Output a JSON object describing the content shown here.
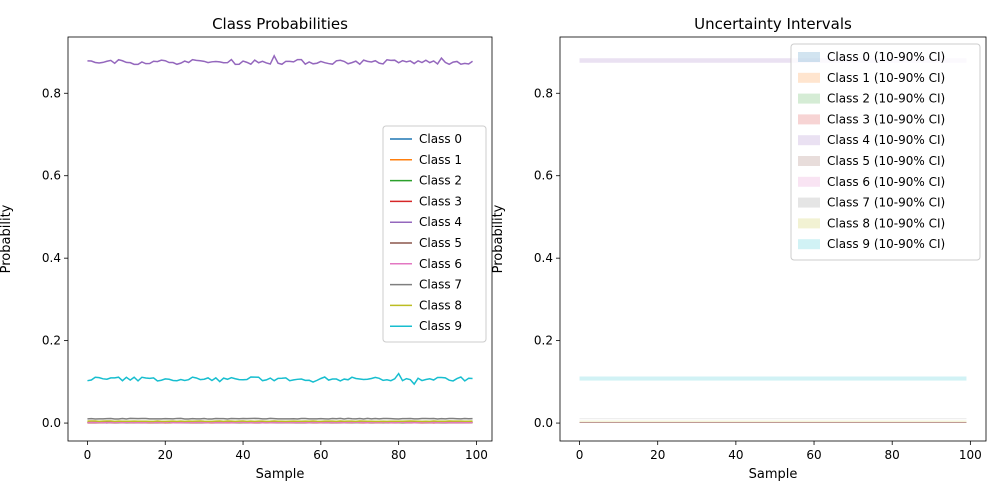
{
  "chart_data": [
    {
      "type": "line",
      "title": "Class Probabilities",
      "xlabel": "Sample",
      "ylabel": "Probability",
      "xlim": [
        -5,
        104
      ],
      "ylim": [
        -0.0435,
        0.9365
      ],
      "xticks": [
        0,
        20,
        40,
        60,
        80,
        100
      ],
      "yticks": [
        0.0,
        0.2,
        0.4,
        0.6,
        0.8
      ],
      "grid": false,
      "legend_position": "center-right",
      "n_samples": 100,
      "series": [
        {
          "name": "Class 0",
          "color": "#1f77b4",
          "mean": 0.0015,
          "noise": 0.0004
        },
        {
          "name": "Class 1",
          "color": "#ff7f0e",
          "mean": 0.0015,
          "noise": 0.0004
        },
        {
          "name": "Class 2",
          "color": "#2ca02c",
          "mean": 0.0015,
          "noise": 0.0004
        },
        {
          "name": "Class 3",
          "color": "#d62728",
          "mean": 0.0015,
          "noise": 0.0004
        },
        {
          "name": "Class 4",
          "color": "#9467bd",
          "mean": 0.876,
          "noise": 0.006
        },
        {
          "name": "Class 5",
          "color": "#8c564b",
          "mean": 0.0015,
          "noise": 0.0004
        },
        {
          "name": "Class 6",
          "color": "#e377c2",
          "mean": 0.0015,
          "noise": 0.0004
        },
        {
          "name": "Class 7",
          "color": "#7f7f7f",
          "mean": 0.0105,
          "noise": 0.0008
        },
        {
          "name": "Class 8",
          "color": "#bcbd22",
          "mean": 0.0045,
          "noise": 0.0005
        },
        {
          "name": "Class 9",
          "color": "#17becf",
          "mean": 0.107,
          "noise": 0.005
        }
      ]
    },
    {
      "type": "area",
      "title": "Uncertainty Intervals",
      "xlabel": "Sample",
      "ylabel": "Probability",
      "xlim": [
        -5,
        104
      ],
      "ylim": [
        -0.0435,
        0.9365
      ],
      "xticks": [
        0,
        20,
        40,
        60,
        80,
        100
      ],
      "yticks": [
        0.0,
        0.2,
        0.4,
        0.6,
        0.8
      ],
      "grid": false,
      "legend_position": "top-right",
      "x_range": [
        0,
        99
      ],
      "series": [
        {
          "name": "Class 0 (10-90% CI)",
          "color": "#1f77b4",
          "lower": 0.0005,
          "upper": 0.0025
        },
        {
          "name": "Class 1 (10-90% CI)",
          "color": "#ff7f0e",
          "lower": 0.0005,
          "upper": 0.0025
        },
        {
          "name": "Class 2 (10-90% CI)",
          "color": "#2ca02c",
          "lower": 0.0005,
          "upper": 0.0025
        },
        {
          "name": "Class 3 (10-90% CI)",
          "color": "#d62728",
          "lower": 0.0005,
          "upper": 0.0025
        },
        {
          "name": "Class 4 (10-90% CI)",
          "color": "#9467bd",
          "lower": 0.874,
          "upper": 0.885
        },
        {
          "name": "Class 5 (10-90% CI)",
          "color": "#8c564b",
          "lower": 0.0005,
          "upper": 0.0025
        },
        {
          "name": "Class 6 (10-90% CI)",
          "color": "#e377c2",
          "lower": 0.0005,
          "upper": 0.0025
        },
        {
          "name": "Class 7 (10-90% CI)",
          "color": "#7f7f7f",
          "lower": 0.0095,
          "upper": 0.0115
        },
        {
          "name": "Class 8 (10-90% CI)",
          "color": "#bcbd22",
          "lower": 0.003,
          "upper": 0.006
        },
        {
          "name": "Class 9 (10-90% CI)",
          "color": "#17becf",
          "lower": 0.103,
          "upper": 0.113
        }
      ]
    }
  ]
}
